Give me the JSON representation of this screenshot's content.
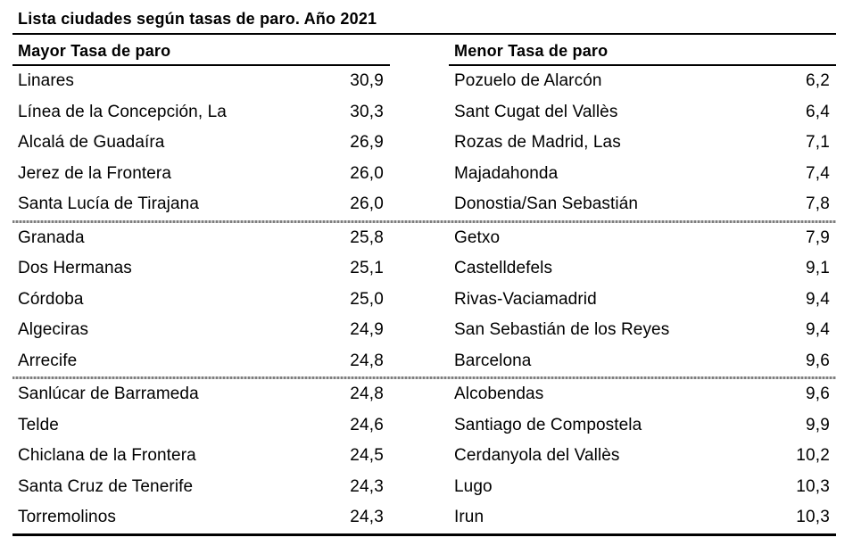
{
  "title": "Lista ciudades según tasas de paro. Año 2021",
  "table": {
    "left": {
      "header": "Mayor Tasa de paro",
      "rows": [
        {
          "city": "Linares",
          "value": "30,9"
        },
        {
          "city": "Línea de la Concepción, La",
          "value": "30,3"
        },
        {
          "city": "Alcalá de Guadaíra",
          "value": "26,9"
        },
        {
          "city": "Jerez de la Frontera",
          "value": "26,0"
        },
        {
          "city": "Santa Lucía de Tirajana",
          "value": "26,0"
        },
        {
          "city": "Granada",
          "value": "25,8"
        },
        {
          "city": "Dos Hermanas",
          "value": "25,1"
        },
        {
          "city": "Córdoba",
          "value": "25,0"
        },
        {
          "city": "Algeciras",
          "value": "24,9"
        },
        {
          "city": "Arrecife",
          "value": "24,8"
        },
        {
          "city": "Sanlúcar de Barrameda",
          "value": "24,8"
        },
        {
          "city": "Telde",
          "value": "24,6"
        },
        {
          "city": "Chiclana de la Frontera",
          "value": "24,5"
        },
        {
          "city": "Santa Cruz de Tenerife",
          "value": "24,3"
        },
        {
          "city": "Torremolinos",
          "value": "24,3"
        }
      ]
    },
    "right": {
      "header": "Menor Tasa de paro",
      "rows": [
        {
          "city": "Pozuelo de Alarcón",
          "value": "6,2"
        },
        {
          "city": "Sant Cugat del Vallès",
          "value": "6,4"
        },
        {
          "city": "Rozas de Madrid, Las",
          "value": "7,1"
        },
        {
          "city": "Majadahonda",
          "value": "7,4"
        },
        {
          "city": "Donostia/San Sebastián",
          "value": "7,8"
        },
        {
          "city": "Getxo",
          "value": "7,9"
        },
        {
          "city": "Castelldefels",
          "value": "9,1"
        },
        {
          "city": "Rivas-Vaciamadrid",
          "value": "9,4"
        },
        {
          "city": "San Sebastián de los Reyes",
          "value": "9,4"
        },
        {
          "city": "Barcelona",
          "value": "9,6"
        },
        {
          "city": "Alcobendas",
          "value": "9,6"
        },
        {
          "city": "Santiago de Compostela",
          "value": "9,9"
        },
        {
          "city": "Cerdanyola del Vallès",
          "value": "10,2"
        },
        {
          "city": "Lugo",
          "value": "10,3"
        },
        {
          "city": "Irun",
          "value": "10,3"
        }
      ]
    }
  },
  "colors": {
    "background": "#ffffff",
    "text": "#000000",
    "rule_dark": "#000000",
    "rule_gray": "#9a9a9a"
  }
}
